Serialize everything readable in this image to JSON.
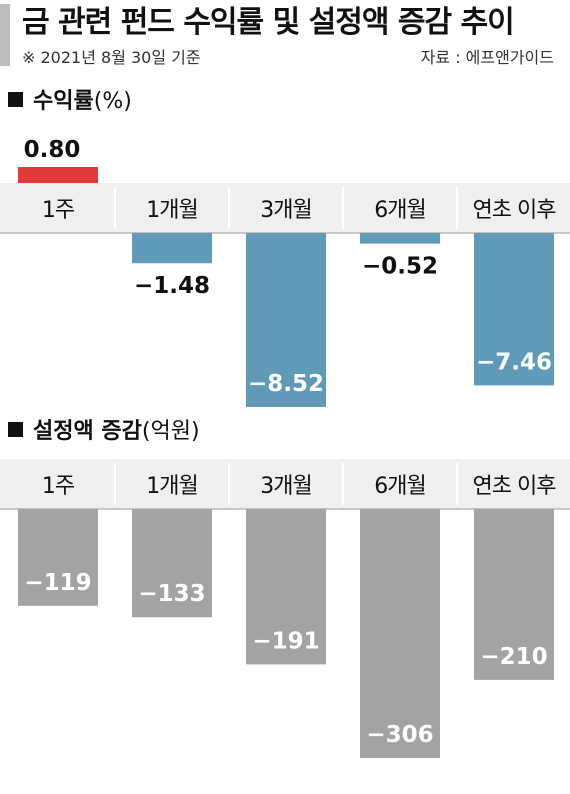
{
  "header": {
    "title": "금 관련 펀드 수익률 및 설정액 증감 추이",
    "subtitle": "※ 2021년 8월 30일 기준",
    "source": "자료 : 에프앤가이드"
  },
  "colors": {
    "positive": "#e03b3b",
    "negative_return": "#5f9ab9",
    "flow": "#a3a3a3",
    "band": "#efefef"
  },
  "chart_data": [
    {
      "type": "bar",
      "title": "수익률",
      "unit": "(%)",
      "categories": [
        "1주",
        "1개월",
        "3개월",
        "6개월",
        "연초 이후"
      ],
      "values": [
        0.8,
        -1.48,
        -8.52,
        -0.52,
        -7.46
      ],
      "value_labels": [
        "0.80",
        "−1.48",
        "−8.52",
        "−0.52",
        "−7.46"
      ],
      "ylim": [
        -9,
        1
      ]
    },
    {
      "type": "bar",
      "title": "설정액 증감",
      "unit": "(억원)",
      "categories": [
        "1주",
        "1개월",
        "3개월",
        "6개월",
        "연초 이후"
      ],
      "values": [
        -119,
        -133,
        -191,
        -306,
        -210
      ],
      "value_labels": [
        "−119",
        "−133",
        "−191",
        "−306",
        "−210"
      ],
      "ylim": [
        -320,
        0
      ]
    }
  ]
}
